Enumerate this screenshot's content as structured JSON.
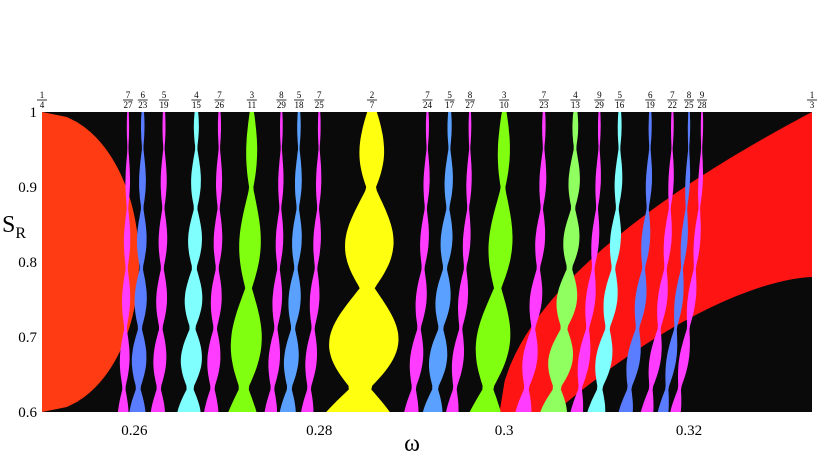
{
  "chart_data": {
    "type": "heatmap",
    "title": "",
    "xlabel": "ω",
    "ylabel_main": "S",
    "ylabel_sub": "R",
    "xlim": [
      0.25,
      0.3333
    ],
    "ylim": [
      0.6,
      1.0
    ],
    "x_ticks": [
      {
        "value": 0.26,
        "label": "0.26"
      },
      {
        "value": 0.28,
        "label": "0.28"
      },
      {
        "value": 0.3,
        "label": "0.3"
      },
      {
        "value": 0.32,
        "label": "0.32"
      }
    ],
    "y_ticks": [
      {
        "value": 0.6,
        "label": "0.6"
      },
      {
        "value": 0.7,
        "label": "0.7"
      },
      {
        "value": 0.8,
        "label": "0.8"
      },
      {
        "value": 0.9,
        "label": "0.9"
      },
      {
        "value": 1.0,
        "label": "1"
      }
    ],
    "background_color": "#0a0a0a",
    "regions": [
      {
        "type": "left",
        "color": "#ff3b14",
        "x_at_top": 0.25,
        "x_at_bottom": 0.25,
        "max_x": 0.2605,
        "peak_y": 0.8
      },
      {
        "type": "right",
        "color": "#ff1414",
        "x_at_top": 0.3333,
        "bottom_edge_y": 0.78,
        "x_at_bottom": 0.2995
      }
    ],
    "tongues": [
      {
        "num": 1,
        "den": 4,
        "x": 0.25,
        "color": "#ff3b14",
        "show_tongue": false
      },
      {
        "num": 7,
        "den": 27,
        "x": 0.2593,
        "color": "#ff3cff",
        "width": 0.0006
      },
      {
        "num": 6,
        "den": 23,
        "x": 0.2609,
        "color": "#5a7dff",
        "width": 0.0009
      },
      {
        "num": 5,
        "den": 19,
        "x": 0.2632,
        "color": "#ff3cff",
        "width": 0.0008
      },
      {
        "num": 4,
        "den": 15,
        "x": 0.2667,
        "color": "#80ffff",
        "width": 0.0013
      },
      {
        "num": 7,
        "den": 26,
        "x": 0.2692,
        "color": "#ff3cff",
        "width": 0.0008
      },
      {
        "num": 3,
        "den": 11,
        "x": 0.2727,
        "color": "#80ff10",
        "width": 0.002
      },
      {
        "num": 8,
        "den": 29,
        "x": 0.2759,
        "color": "#ff3cff",
        "width": 0.0007
      },
      {
        "num": 5,
        "den": 18,
        "x": 0.2778,
        "color": "#5aa0ff",
        "width": 0.0009
      },
      {
        "num": 7,
        "den": 25,
        "x": 0.28,
        "color": "#ff3cff",
        "width": 0.0007
      },
      {
        "num": 2,
        "den": 7,
        "x": 0.2857,
        "color": "#ffff10",
        "width": 0.0045
      },
      {
        "num": 7,
        "den": 24,
        "x": 0.2917,
        "color": "#ff3cff",
        "width": 0.0008
      },
      {
        "num": 5,
        "den": 17,
        "x": 0.2941,
        "color": "#5aa0ff",
        "width": 0.0011
      },
      {
        "num": 8,
        "den": 27,
        "x": 0.2963,
        "color": "#ff3cff",
        "width": 0.0007
      },
      {
        "num": 3,
        "den": 10,
        "x": 0.3,
        "color": "#80ff10",
        "width": 0.0022
      },
      {
        "num": 7,
        "den": 23,
        "x": 0.3043,
        "color": "#ff3cff",
        "width": 0.0009
      },
      {
        "num": 4,
        "den": 13,
        "x": 0.3077,
        "color": "#90ff60",
        "width": 0.0015
      },
      {
        "num": 9,
        "den": 29,
        "x": 0.3103,
        "color": "#ff3cff",
        "width": 0.0007
      },
      {
        "num": 5,
        "den": 16,
        "x": 0.3125,
        "color": "#80ffff",
        "width": 0.001
      },
      {
        "num": 6,
        "den": 19,
        "x": 0.3158,
        "color": "#5a7dff",
        "width": 0.0008
      },
      {
        "num": 7,
        "den": 22,
        "x": 0.3182,
        "color": "#ff3cff",
        "width": 0.0007
      },
      {
        "num": 8,
        "den": 25,
        "x": 0.32,
        "color": "#5a7dff",
        "width": 0.0006
      },
      {
        "num": 9,
        "den": 28,
        "x": 0.3214,
        "color": "#ff3cff",
        "width": 0.0006
      },
      {
        "num": 1,
        "den": 3,
        "x": 0.3333,
        "color": "#ff1414",
        "show_tongue": false
      }
    ]
  }
}
